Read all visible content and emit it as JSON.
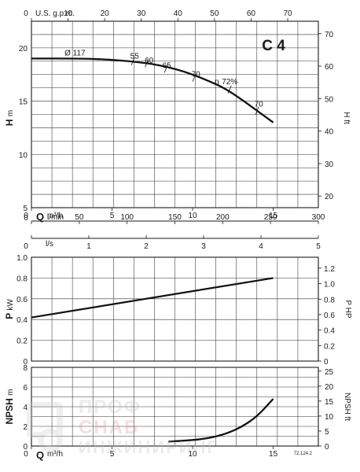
{
  "chart_data": [
    {
      "type": "line",
      "title": "C 4",
      "axes": {
        "top": {
          "label": "U.S. g.p.m.",
          "ticks": [
            "0",
            "10",
            "20",
            "30",
            "40",
            "50",
            "60",
            "70"
          ]
        },
        "bottom": {
          "label_q": "Q",
          "label_unit": "m³/h",
          "ticks": [
            "0",
            "5",
            "10",
            "15"
          ]
        },
        "left": {
          "label": "H",
          "unit": "m",
          "ticks": [
            "5",
            "10",
            "15",
            "20"
          ],
          "ylim": [
            5,
            22.5
          ]
        },
        "right": {
          "label": "H ft",
          "ticks": [
            "20",
            "30",
            "40",
            "50",
            "60",
            "70"
          ]
        }
      },
      "x_range": [
        0,
        17.8
      ],
      "series": [
        {
          "x": [
            0,
            3,
            5,
            7,
            8,
            9,
            10,
            11,
            12,
            13,
            14,
            15
          ],
          "y": [
            19.0,
            19.0,
            18.9,
            18.6,
            18.35,
            18.0,
            17.5,
            16.9,
            16.2,
            15.2,
            14.1,
            13.0
          ]
        }
      ],
      "annotations": [
        {
          "text": "Ø 117",
          "x": 2.7,
          "y": 19.3
        },
        {
          "text": "55",
          "x": 6.4,
          "y": 19.0
        },
        {
          "text": "60",
          "x": 7.3,
          "y": 18.6
        },
        {
          "text": "65",
          "x": 8.4,
          "y": 18.1
        },
        {
          "text": "70",
          "x": 10.2,
          "y": 17.3
        },
        {
          "text": "η",
          "x": 11.5,
          "y": 16.6
        },
        {
          "text": "72%",
          "x": 12.3,
          "y": 16.6
        },
        {
          "text": "70",
          "x": 14.1,
          "y": 14.5
        }
      ]
    },
    {
      "type": "axis",
      "lmin": {
        "label": "l/min",
        "ticks": [
          "0",
          "50",
          "100",
          "150",
          "200",
          "250",
          "300"
        ]
      },
      "ls": {
        "label": "l/s",
        "ticks": [
          "0",
          "1",
          "2",
          "3",
          "4",
          "5"
        ]
      }
    },
    {
      "type": "line",
      "axes": {
        "left": {
          "label": "P",
          "unit": "kW",
          "ticks": [
            "0",
            "0.2",
            "0.4",
            "0.6",
            "0.8",
            "1.0"
          ],
          "ylim": [
            0,
            1.0
          ]
        },
        "right": {
          "label": "P HP",
          "ticks": [
            "0",
            "0.2",
            "0.4",
            "0.6",
            "0.8",
            "1.0",
            "1.2"
          ]
        }
      },
      "series": [
        {
          "x": [
            0,
            15
          ],
          "y": [
            0.42,
            0.8
          ]
        }
      ]
    },
    {
      "type": "line",
      "axes": {
        "left": {
          "label": "NPSH",
          "unit": "m",
          "ticks": [
            "0",
            "2",
            "4",
            "6",
            "8"
          ],
          "ylim": [
            0,
            8
          ]
        },
        "right": {
          "label": "NPSH ft",
          "ticks": [
            "0",
            "5",
            "10",
            "15",
            "20",
            "25"
          ]
        },
        "bottom": {
          "label_q": "Q",
          "label_unit": "m³/h",
          "ticks": [
            "0",
            "5",
            "10",
            "15"
          ]
        }
      },
      "series": [
        {
          "x": [
            8.5,
            10,
            11,
            12,
            13,
            14,
            15
          ],
          "y": [
            0.45,
            0.6,
            0.8,
            1.2,
            1.9,
            3.0,
            4.8
          ]
        }
      ],
      "code": "72.124.2"
    }
  ],
  "watermark": {
    "line1": "ПРОФ",
    "line2": "СНАБ",
    "line3": "ИНЖИНИРИНГ"
  }
}
